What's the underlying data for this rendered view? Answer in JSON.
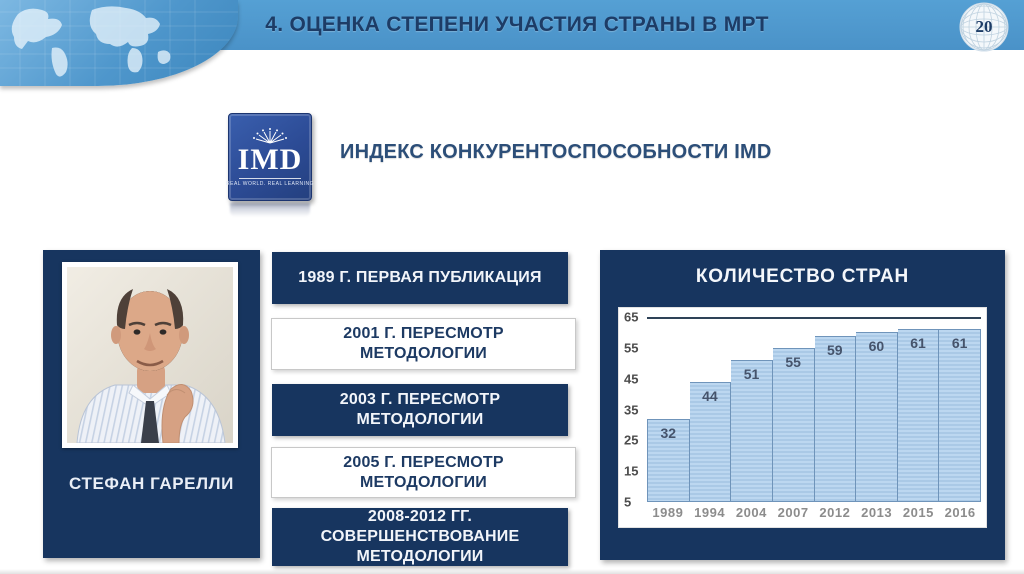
{
  "header": {
    "title": "4. ОЦЕНКА СТЕПЕНИ УЧАСТИЯ СТРАНЫ В МРТ",
    "page_number": "20"
  },
  "logo": {
    "imd_text": "IMD",
    "imd_tagline": "REAL WORLD. REAL LEARNING",
    "caption": "ИНДЕКС КОНКУРЕНТОСПОСОБНОСТИ IMD"
  },
  "person": {
    "name": "СТЕФАН ГАРЕЛЛИ"
  },
  "timeline": {
    "items": [
      {
        "label": "1989 Г. ПЕРВАЯ ПУБЛИКАЦИЯ",
        "style": "navy"
      },
      {
        "label": "2001 Г. ПЕРЕСМОТР МЕТОДОЛОГИИ",
        "style": "white"
      },
      {
        "label": "2003 Г. ПЕРЕСМОТР МЕТОДОЛОГИИ",
        "style": "navy"
      },
      {
        "label": "2005 Г. ПЕРЕСМОТР МЕТОДОЛОГИИ",
        "style": "white"
      },
      {
        "label": "2008-2012 ГГ. СОВЕРШЕНСТВОВАНИЕ МЕТОДОЛОГИИ",
        "style": "navy"
      }
    ]
  },
  "chart_data": {
    "type": "bar",
    "title": "КОЛИЧЕСТВО СТРАН",
    "categories": [
      "1989",
      "1994",
      "2004",
      "2007",
      "2012",
      "2013",
      "2015",
      "2016"
    ],
    "values": [
      32,
      44,
      51,
      55,
      59,
      60,
      61,
      61
    ],
    "y_ticks": [
      65,
      55,
      45,
      35,
      25,
      15,
      5
    ],
    "ylim": [
      5,
      65
    ],
    "xlabel": "",
    "ylabel": "",
    "grid": false,
    "legend": "none",
    "bar_color": "#b3d0ec",
    "bar_border": "#6f94ba"
  },
  "colors": {
    "header_blue": "#4a92c8",
    "navy_panel": "#17355f",
    "title_navy": "#1d3c66",
    "caption_navy": "#2c4e78"
  }
}
